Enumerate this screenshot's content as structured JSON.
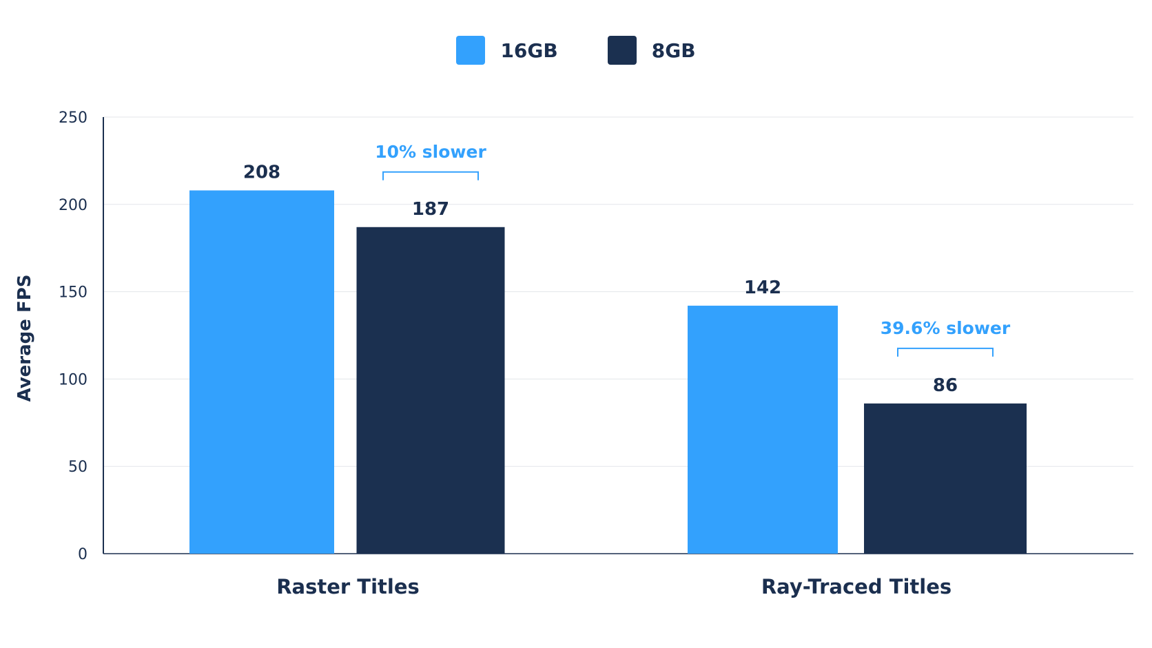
{
  "chart_data": {
    "type": "bar",
    "categories": [
      "Raster Titles",
      "Ray-Traced Titles"
    ],
    "series": [
      {
        "name": "16GB",
        "values": [
          208,
          142
        ],
        "color": "#33a1fd"
      },
      {
        "name": "8GB",
        "values": [
          187,
          86
        ],
        "color": "#1b3050"
      }
    ],
    "ylabel": "Average FPS",
    "xlabel": "",
    "ylim": [
      0,
      250
    ],
    "yticks": [
      0,
      50,
      100,
      150,
      200,
      250
    ],
    "grid": true,
    "legend": "top-center",
    "annotations": [
      {
        "text": "10% slower",
        "category": "Raster Titles"
      },
      {
        "text": "39.6% slower",
        "category": "Ray-Traced Titles"
      }
    ]
  }
}
